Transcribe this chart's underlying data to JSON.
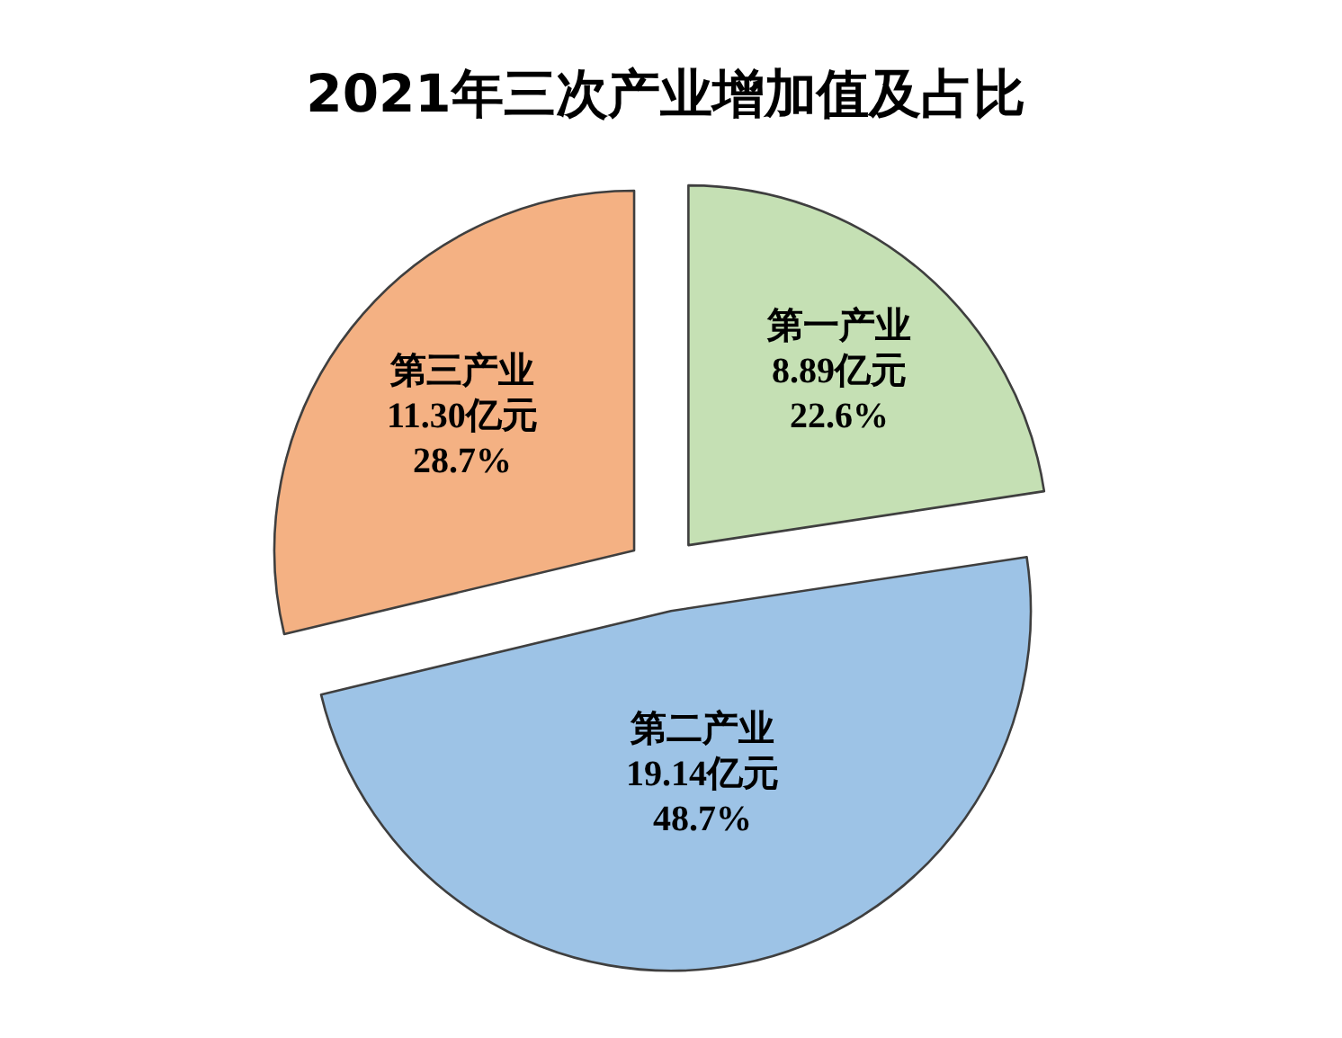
{
  "chart_data": {
    "type": "pie",
    "title": "2021年三次产业增加值及占比",
    "categories": [
      "第一产业",
      "第二产业",
      "第三产业"
    ],
    "values": [
      8.89,
      19.14,
      11.3
    ],
    "colors": [
      "#c5e0b4",
      "#9dc3e6",
      "#f4b183"
    ],
    "value_labels": [
      "8.89亿元\n22.6%",
      "19.14亿元\n48.7%",
      "11.30亿元\n28.7%"
    ]
  }
}
